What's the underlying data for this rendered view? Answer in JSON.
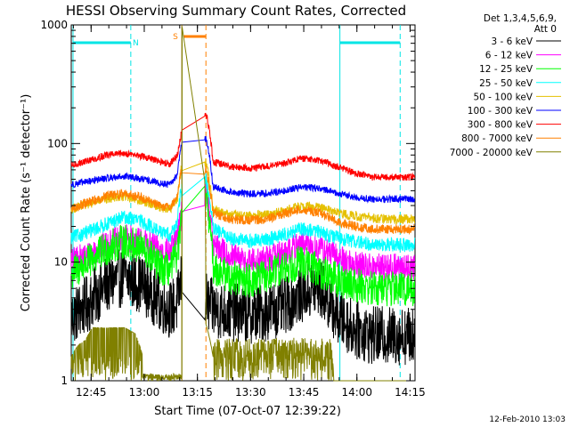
{
  "chart_data": {
    "type": "line",
    "title": "HESSI Observing Summary Count Rates, Corrected",
    "xlabel": "Start Time (07-Oct-07 12:39:22)",
    "ylabel": "Corrected Count Rate (s⁻¹ detector⁻¹)",
    "yscale": "log",
    "ylim": [
      1,
      1000
    ],
    "xlim_minutes": [
      0,
      97
    ],
    "xtick_labels": [
      "12:45",
      "13:00",
      "13:15",
      "13:30",
      "13:45",
      "14:00",
      "14:15"
    ],
    "xtick_minutes": [
      5.6,
      20.6,
      35.6,
      50.6,
      65.6,
      80.6,
      95.6
    ],
    "ytick_labels": [
      "1",
      "10",
      "100",
      "1000"
    ],
    "ytick_values": [
      1,
      10,
      100,
      1000
    ],
    "legend_header": [
      "Det 1,3,4,5,6,9,",
      "Att 0"
    ],
    "legend_position": "right",
    "footer_date": "12-Feb-2010 13:03",
    "night_markers": [
      {
        "label": "N",
        "start": 0.5,
        "end": 16.8,
        "color": "#00e5e5"
      },
      {
        "label": "",
        "start": 75.8,
        "end": 92.8,
        "color": "#00e5e5"
      }
    ],
    "saa_markers": [
      {
        "label": "S",
        "start": 31.2,
        "end": 38.0,
        "color": "#ff8000"
      }
    ],
    "gap": [
      31.2,
      37.8
    ],
    "series": [
      {
        "name": "3 - 6 keV",
        "color": "#000000",
        "base": 5.0,
        "bump": 1.7,
        "noise": 0.25,
        "x": [
          0,
          5,
          10,
          15,
          20,
          25,
          28,
          30,
          31,
          40,
          45,
          50,
          55,
          60,
          65,
          70,
          75,
          80,
          85,
          90,
          97
        ],
        "y": [
          3.4,
          4.5,
          6.5,
          7.5,
          6.5,
          4.5,
          4.0,
          4.5,
          7.0,
          4.0,
          3.8,
          3.6,
          3.8,
          4.2,
          5.5,
          6.0,
          3.5,
          2.7,
          2.4,
          2.4,
          2.4
        ]
      },
      {
        "name": "6 - 12 keV",
        "color": "#ff00ff",
        "base": 10,
        "bump": 1.6,
        "noise": 0.12,
        "x": [
          0,
          5,
          10,
          15,
          20,
          25,
          28,
          30,
          31,
          38,
          40,
          45,
          50,
          55,
          60,
          65,
          70,
          75,
          80,
          85,
          90,
          97
        ],
        "y": [
          10.0,
          11.5,
          14.0,
          16.0,
          15.0,
          12.5,
          12.0,
          16.0,
          25.0,
          40.0,
          14.0,
          11.0,
          10.0,
          10.5,
          12.0,
          14.0,
          13.0,
          11.0,
          9.5,
          9.0,
          9.0,
          9.0
        ]
      },
      {
        "name": "12 - 25 keV",
        "color": "#00ff00",
        "base": 9,
        "bump": 1.5,
        "noise": 0.15,
        "x": [
          0,
          5,
          10,
          15,
          20,
          25,
          28,
          30,
          31,
          38,
          40,
          45,
          50,
          55,
          60,
          65,
          70,
          75,
          80,
          85,
          90,
          97
        ],
        "y": [
          8.0,
          10.0,
          13.0,
          15.0,
          13.0,
          9.0,
          8.5,
          12.0,
          20.0,
          35.0,
          9.0,
          7.5,
          7.0,
          7.5,
          9.0,
          10.0,
          8.5,
          7.0,
          6.5,
          6.0,
          6.0,
          6.0
        ]
      },
      {
        "name": "25 - 50 keV",
        "color": "#00ffff",
        "base": 17,
        "bump": 1.4,
        "noise": 0.06,
        "x": [
          0,
          5,
          10,
          15,
          20,
          25,
          28,
          30,
          31,
          38,
          40,
          45,
          50,
          55,
          60,
          65,
          70,
          75,
          80,
          85,
          90,
          97
        ],
        "y": [
          16.0,
          18.0,
          21.0,
          24.0,
          22.0,
          18.0,
          17.0,
          22.0,
          40.0,
          50.0,
          19.0,
          16.0,
          15.0,
          15.5,
          17.0,
          19.0,
          18.0,
          16.0,
          15.0,
          14.0,
          14.0,
          14.0
        ]
      },
      {
        "name": "50 - 100 keV",
        "color": "#e5c000",
        "base": 30,
        "bump": 1.3,
        "noise": 0.04,
        "x": [
          0,
          5,
          10,
          15,
          20,
          25,
          28,
          30,
          31,
          38,
          40,
          45,
          50,
          55,
          60,
          65,
          70,
          75,
          80,
          85,
          90,
          97
        ],
        "y": [
          28.0,
          31.0,
          34.0,
          36.0,
          33.0,
          29.0,
          28.0,
          35.0,
          60.0,
          70.0,
          28.0,
          25.0,
          24.5,
          25.0,
          27.0,
          30.0,
          29.0,
          26.0,
          24.5,
          23.5,
          23.0,
          23.0
        ]
      },
      {
        "name": "100 - 300 keV",
        "color": "#0000ff",
        "base": 48,
        "bump": 1.2,
        "noise": 0.03,
        "x": [
          0,
          5,
          10,
          15,
          20,
          25,
          28,
          30,
          31,
          38,
          40,
          45,
          50,
          55,
          60,
          65,
          70,
          75,
          80,
          85,
          90,
          97
        ],
        "y": [
          45.0,
          48.0,
          51.0,
          53.0,
          50.0,
          46.0,
          45.0,
          55.0,
          100.0,
          110.0,
          43.0,
          39.0,
          37.5,
          38.0,
          40.0,
          43.0,
          42.0,
          38.0,
          35.0,
          34.0,
          34.0,
          34.0
        ]
      },
      {
        "name": "300 - 800 keV",
        "color": "#ff0000",
        "base": 70,
        "bump": 1.25,
        "noise": 0.03,
        "x": [
          0,
          5,
          10,
          15,
          20,
          25,
          28,
          30,
          31,
          38,
          40,
          45,
          50,
          55,
          60,
          65,
          70,
          75,
          80,
          85,
          90,
          97
        ],
        "y": [
          65.0,
          72.0,
          80.0,
          83.0,
          78.0,
          70.0,
          68.0,
          80.0,
          120.0,
          180.0,
          70.0,
          64.0,
          62.0,
          64.0,
          68.0,
          75.0,
          72.0,
          64.0,
          56.0,
          52.0,
          52.0,
          52.0
        ]
      },
      {
        "name": "800 - 7000 keV",
        "color": "#ff8000",
        "base": 30,
        "bump": 1.3,
        "noise": 0.04,
        "x": [
          0,
          5,
          10,
          15,
          20,
          25,
          28,
          30,
          31,
          38,
          40,
          45,
          50,
          55,
          60,
          65,
          70,
          75,
          80,
          85,
          90,
          97
        ],
        "y": [
          28.0,
          32.0,
          36.0,
          38.0,
          35.0,
          30.0,
          29.0,
          36.0,
          60.0,
          60.0,
          26.0,
          23.0,
          22.5,
          23.0,
          25.5,
          28.0,
          26.0,
          22.0,
          20.0,
          19.0,
          19.0,
          19.0
        ]
      },
      {
        "name": "7000 - 20000 keV",
        "color": "#808000",
        "base": 2,
        "bump": 1.0,
        "noise": 0.5,
        "x": [
          0,
          2,
          4,
          6,
          10,
          15,
          18,
          20,
          25,
          28,
          31,
          38,
          40,
          45,
          50,
          55,
          60,
          65,
          70,
          75,
          80,
          85,
          90,
          97
        ],
        "y": [
          1.6,
          2.0,
          2.2,
          2.8,
          2.8,
          2.8,
          2.5,
          1.7,
          1.6,
          1.6,
          1000,
          3.0,
          1.6,
          1.7,
          1.8,
          2.0,
          2.2,
          2.2,
          2.0,
          1.8,
          1.0,
          1.0,
          1.0,
          1.0
        ]
      }
    ]
  }
}
